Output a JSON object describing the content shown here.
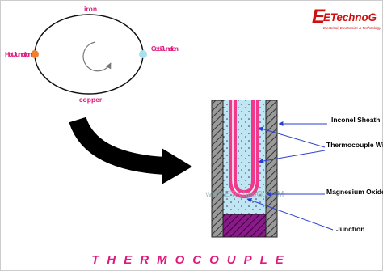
{
  "logo": {
    "name": "ETechnoG",
    "tagline": "Electrical, Electronics & Technology"
  },
  "circuit": {
    "top_wire": "iron",
    "bottom_wire": "copper",
    "hot_junction": "Hot Junction",
    "cold_junction": "Cold Junction"
  },
  "watermark": "www.ETechnoG.COM",
  "labels": {
    "sheath": "Inconel Sheath",
    "wires": "Thermocouple Wires",
    "oxide": "Magnesium Oxide",
    "junction": "Junction"
  },
  "title": "THERMOCOUPLE"
}
